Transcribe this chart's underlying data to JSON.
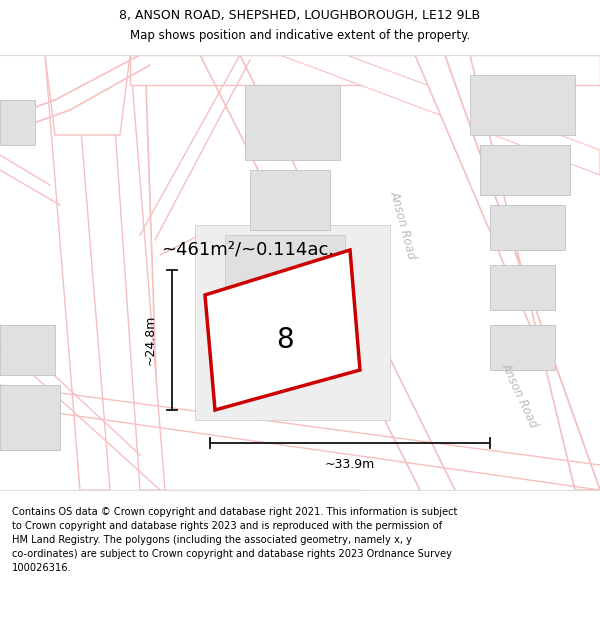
{
  "title_line1": "8, ANSON ROAD, SHEPSHED, LOUGHBOROUGH, LE12 9LB",
  "title_line2": "Map shows position and indicative extent of the property.",
  "footer_lines": [
    "Contains OS data © Crown copyright and database right 2021. This information is subject to Crown copyright and database rights 2023 and is reproduced with the permission of",
    "HM Land Registry. The polygons (including the associated geometry, namely x, y co-ordinates) are subject to Crown copyright and database rights 2023 Ordnance Survey",
    "100026316."
  ],
  "area_label": "~461m²/~0.114ac.",
  "width_label": "~33.9m",
  "height_label": "~24.8m",
  "plot_number": "8",
  "road_label1": "Anson Road",
  "road_label2": "Anson Road",
  "map_bg": "#ffffff",
  "road_line_color": "#f5c0c0",
  "building_fill": "#e0e0e0",
  "building_edge": "#c8c8c8",
  "plot_fill": "#ffffff",
  "plot_outline": "#cc0000",
  "road_text_color": "#bbbbbb",
  "dim_color": "#111111",
  "title_fs": 9.0,
  "subtitle_fs": 8.5,
  "footer_fs": 7.1,
  "area_fs": 13,
  "dim_fs": 9,
  "plot_label_fs": 20,
  "road_label_fs": 8.5,
  "header_bg": "#ffffff",
  "footer_bg": "#ffffff",
  "map_border": "#dddddd"
}
